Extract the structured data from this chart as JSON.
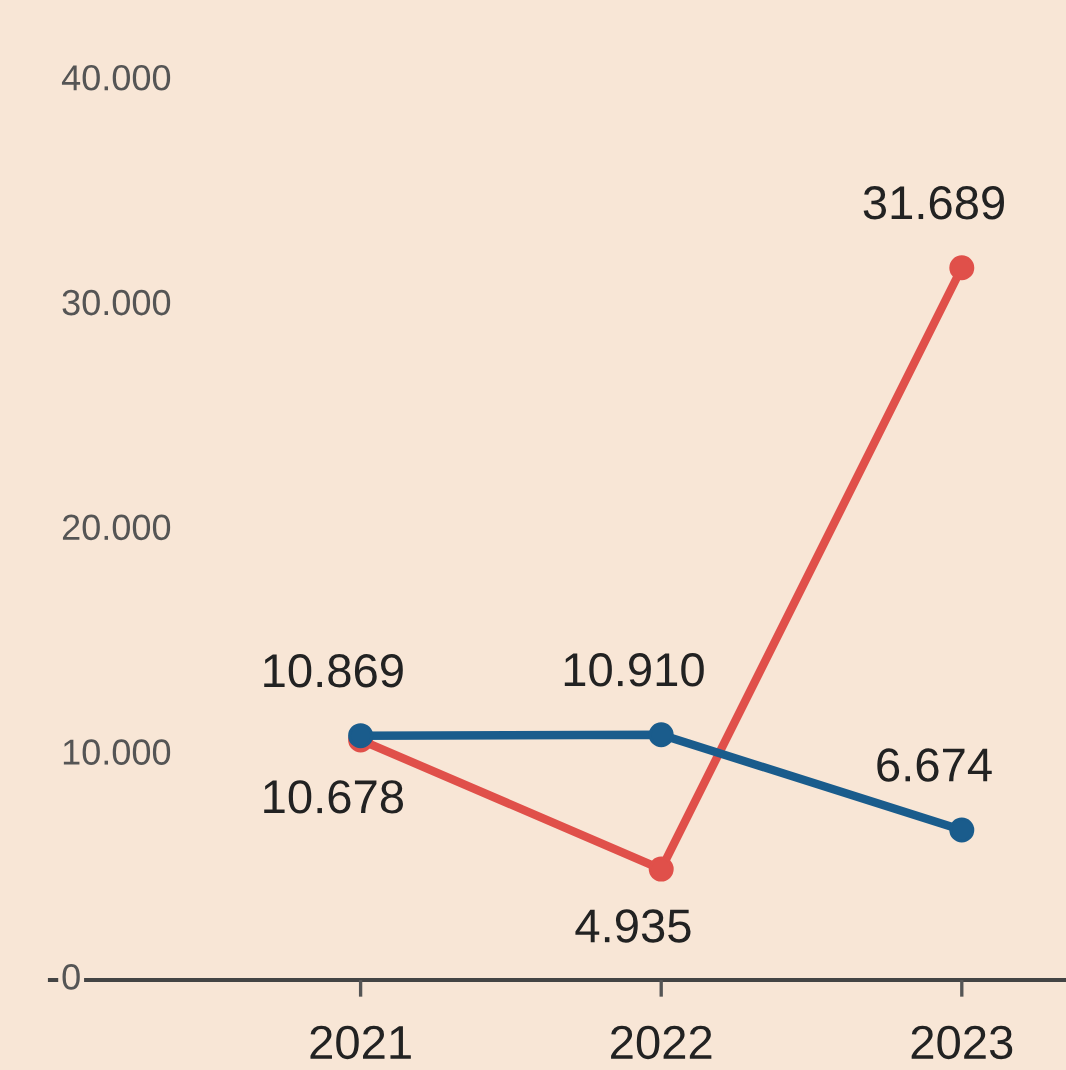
{
  "chart_data": {
    "type": "line",
    "categories": [
      "2021",
      "2022",
      "2023"
    ],
    "series": [
      {
        "color": "#e0504a",
        "values": [
          10678,
          4935,
          31689
        ],
        "value_labels": [
          "10.678",
          "4.935",
          "31.689"
        ]
      },
      {
        "color": "#1a5c8c",
        "values": [
          10869,
          10910,
          6674
        ],
        "value_labels": [
          "10.869",
          "10.910",
          "6.674"
        ]
      }
    ],
    "ylim": [
      0,
      43600
    ],
    "yticks": [
      {
        "value": 0,
        "label": "0"
      },
      {
        "value": 10000,
        "label": "10.000"
      },
      {
        "value": 20000,
        "label": "20.000"
      },
      {
        "value": 30000,
        "label": "30.000"
      },
      {
        "value": 40000,
        "label": "40.000"
      }
    ],
    "marker": "circle",
    "line_style": "solid",
    "legend": false,
    "grid": false
  }
}
